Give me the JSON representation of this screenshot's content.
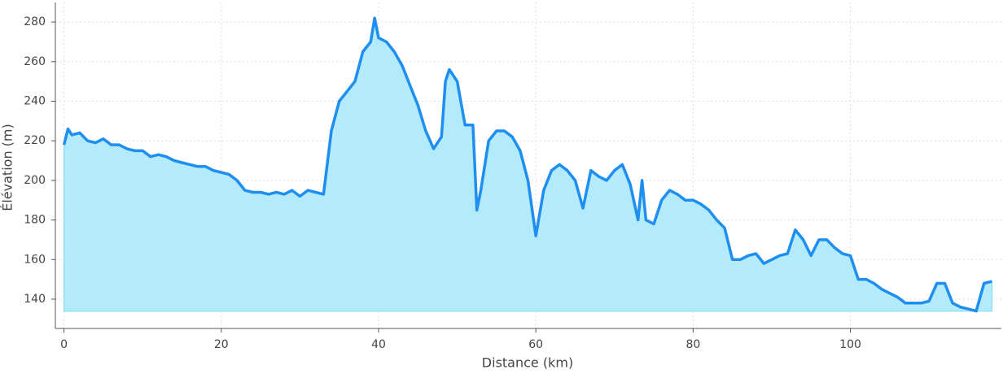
{
  "chart_data": {
    "type": "area",
    "x_label": "Distance (km)",
    "y_label": "Élévation (m)",
    "x": [
      0,
      0.5,
      1,
      2,
      3,
      4,
      5,
      6,
      7,
      8,
      9,
      10,
      11,
      12,
      13,
      14,
      15,
      16,
      17,
      18,
      19,
      20,
      21,
      22,
      23,
      24,
      25,
      26,
      27,
      28,
      29,
      30,
      31,
      32,
      33,
      34,
      35,
      36,
      37,
      38,
      39,
      39.5,
      40,
      41,
      42,
      43,
      44,
      45,
      46,
      47,
      48,
      48.5,
      49,
      50,
      51,
      52,
      52.5,
      53,
      54,
      55,
      56,
      57,
      58,
      59,
      60,
      61,
      62,
      63,
      64,
      65,
      66,
      67,
      68,
      69,
      70,
      71,
      72,
      73,
      73.5,
      74,
      75,
      76,
      77,
      78,
      79,
      80,
      81,
      82,
      83,
      84,
      85,
      86,
      87,
      88,
      89,
      90,
      91,
      92,
      93,
      94,
      95,
      96,
      97,
      98,
      99,
      100,
      101,
      102,
      103,
      104,
      105,
      106,
      107,
      108,
      109,
      110,
      111,
      112,
      113,
      114,
      115,
      116,
      117,
      118
    ],
    "values": [
      218,
      226,
      223,
      224,
      220,
      219,
      221,
      218,
      218,
      216,
      215,
      215,
      212,
      213,
      212,
      210,
      209,
      208,
      207,
      207,
      205,
      204,
      203,
      200,
      195,
      194,
      194,
      193,
      194,
      193,
      195,
      192,
      195,
      194,
      193,
      225,
      240,
      245,
      250,
      265,
      270,
      282,
      272,
      270,
      265,
      258,
      248,
      238,
      225,
      216,
      222,
      250,
      256,
      250,
      228,
      228,
      185,
      195,
      220,
      225,
      225,
      222,
      215,
      200,
      172,
      195,
      205,
      208,
      205,
      200,
      186,
      205,
      202,
      200,
      205,
      208,
      198,
      180,
      200,
      180,
      178,
      190,
      195,
      193,
      190,
      190,
      188,
      185,
      180,
      176,
      160,
      160,
      162,
      163,
      158,
      160,
      162,
      163,
      175,
      170,
      162,
      170,
      170,
      166,
      163,
      162,
      150,
      150,
      148,
      145,
      143,
      141,
      138,
      138,
      138,
      139,
      148,
      148,
      138,
      136,
      135,
      134,
      148,
      149
    ],
    "color": "#1f8ef1",
    "fill": "#b3ebfa",
    "xlim": [
      -1.1,
      119.2
    ],
    "ylim": [
      125.2,
      289.9
    ],
    "xticks": [
      0,
      20,
      40,
      60,
      80,
      100
    ],
    "yticks": [
      140,
      160,
      180,
      200,
      220,
      240,
      260,
      280
    ],
    "grid": true
  }
}
